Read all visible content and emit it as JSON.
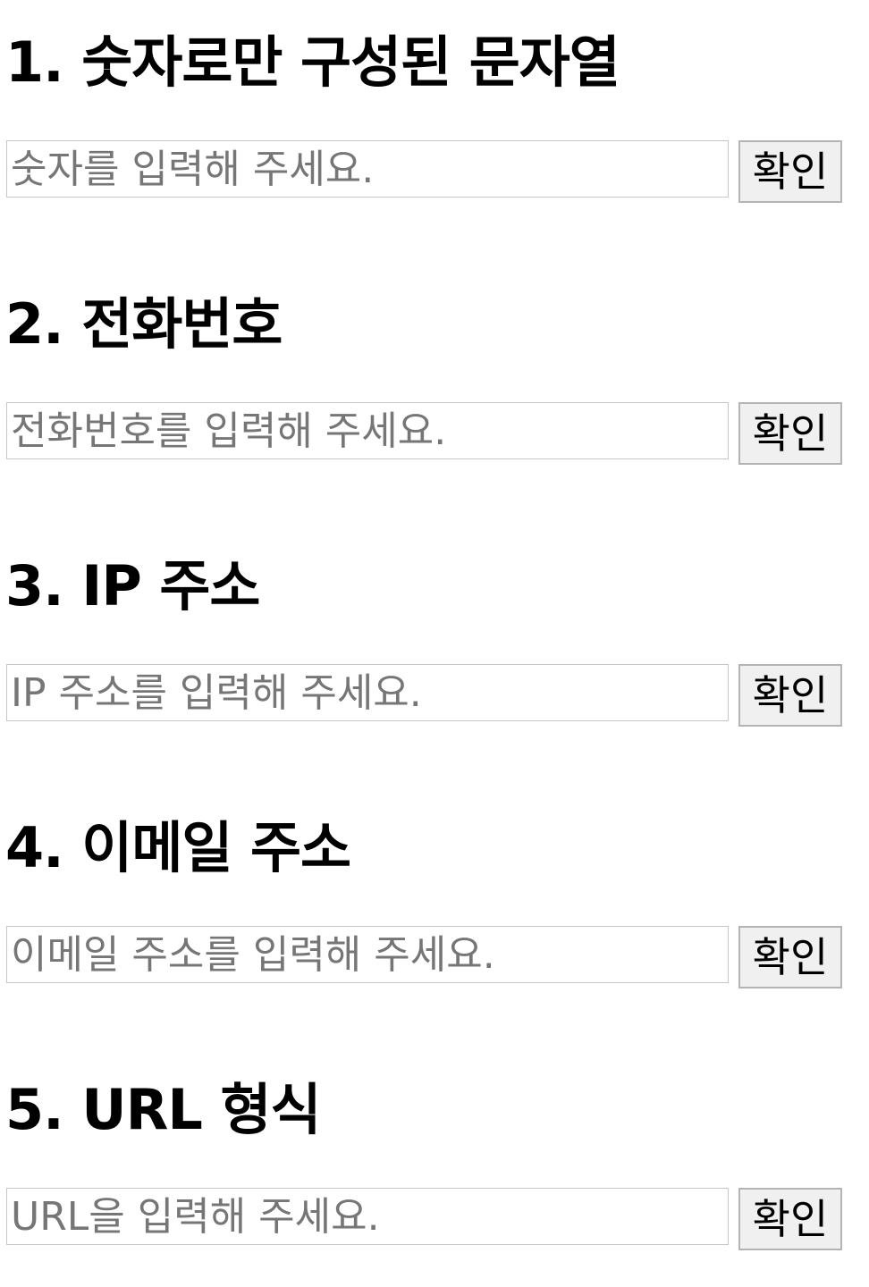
{
  "sections": [
    {
      "title": "1. 숫자로만 구성된 문자열",
      "placeholder": "숫자를 입력해 주세요.",
      "value": "",
      "button": "확인"
    },
    {
      "title": "2. 전화번호",
      "placeholder": "전화번호를 입력해 주세요.",
      "value": "",
      "button": "확인"
    },
    {
      "title": "3. IP 주소",
      "placeholder": "IP 주소를 입력해 주세요.",
      "value": "",
      "button": "확인"
    },
    {
      "title": "4. 이메일 주소",
      "placeholder": "이메일 주소를 입력해 주세요.",
      "value": "",
      "button": "확인"
    },
    {
      "title": "5. URL 형식",
      "placeholder": "URL을 입력해 주세요.",
      "value": "",
      "button": "확인"
    }
  ]
}
